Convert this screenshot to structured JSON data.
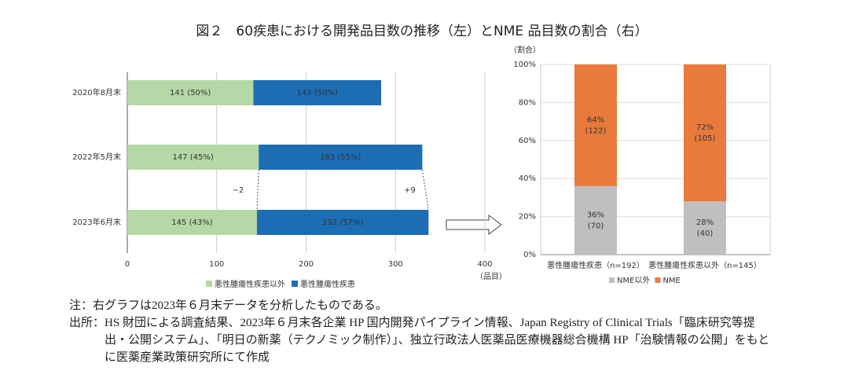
{
  "title": "図２　60疾患における開発品目数の推移（左）とNME 品目数の割合（右）",
  "chart_data": [
    {
      "type": "hbar_stacked",
      "categories": [
        "2020年8月末",
        "2022年5月末",
        "2023年6月末"
      ],
      "series": [
        {
          "name": "悪性腫瘍性疾患以外",
          "color": "#b4d8a6",
          "values": [
            141,
            147,
            145
          ],
          "value_labels": [
            "141 (50%)",
            "147 (45%)",
            "145 (43%)"
          ]
        },
        {
          "name": "悪性腫瘍性疾患",
          "color": "#1d6db5",
          "values": [
            143,
            183,
            192
          ],
          "value_labels": [
            "143 (50%)",
            "183 (55%)",
            "192 (57%)"
          ]
        }
      ],
      "xlim": [
        0,
        400
      ],
      "xticks": [
        0,
        100,
        200,
        300,
        400
      ],
      "xlabel": "（品目）",
      "grid": true,
      "annotations": [
        "−2",
        "+9"
      ]
    },
    {
      "type": "bar_stacked_percent",
      "categories": [
        "悪性腫瘍性疾患（n=192）",
        "悪性腫瘍性疾患以外（n=145）"
      ],
      "series": [
        {
          "name": "NME以外",
          "color": "#bfbfbf",
          "values": [
            36,
            28
          ],
          "value_labels": [
            "36%",
            "28%"
          ],
          "counts": [
            70,
            40
          ],
          "count_labels": [
            "(70)",
            "(40)"
          ]
        },
        {
          "name": "NME",
          "color": "#e87a3c",
          "values": [
            64,
            72
          ],
          "value_labels": [
            "64%",
            "72%"
          ],
          "counts": [
            122,
            105
          ],
          "count_labels": [
            "(122)",
            "(105)"
          ]
        }
      ],
      "ylim": [
        0,
        100
      ],
      "yticks": [
        {
          "value": 0,
          "label": "0%"
        },
        {
          "value": 20,
          "label": "20%"
        },
        {
          "value": 40,
          "label": "40%"
        },
        {
          "value": 60,
          "label": "60%"
        },
        {
          "value": 80,
          "label": "80%"
        },
        {
          "value": 100,
          "label": "100%"
        }
      ],
      "ylabel": "（割合）",
      "grid": true
    }
  ],
  "notes": [
    {
      "label": "注：",
      "text": "右グラフは2023年６月末データを分析したものである。"
    },
    {
      "label": "出所：",
      "text": "HS 財団による調査結果、2023年６月末各企業 HP 国内開発パイプライン情報、Japan Registry of Clinical Trials「臨床研究等提出・公開システム」、「明日の新薬（テクノミック制作）」、独立行政法人医薬品医療機器総合機構 HP「治験情報の公開」をもとに医薬産業政策研究所にて作成"
    }
  ]
}
